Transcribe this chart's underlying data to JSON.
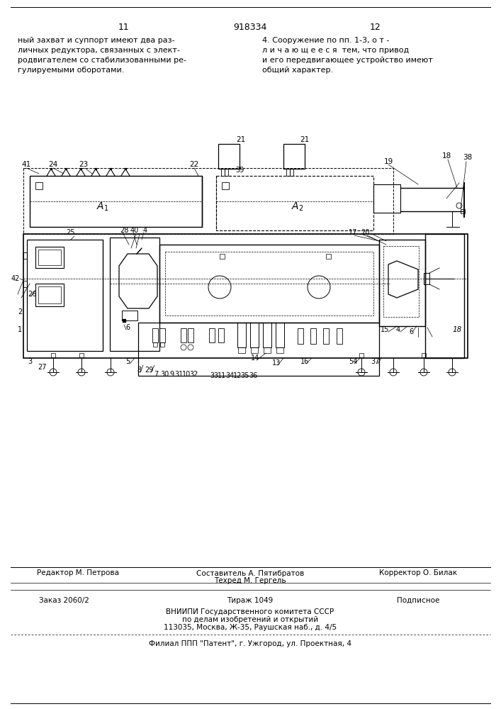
{
  "page_number_left": "11",
  "page_number_center": "918334",
  "page_number_right": "12",
  "text_left": "ный захват и суппорт имеют два раз-\nличных редуктора, связанных с элект-\nродвигателем со стабилизованными ре-\nгулируемыми оборотами.",
  "text_right": "4. Сооружение по пп. 1-3, о т -\nл и ч а ю щ е е с я  тем, что привод\nи его передвигающее устройство имеют\nобщий характер.",
  "footer_editor": "Редактор М. Петрова",
  "footer_composer": "Составитель А. Пятибратов",
  "footer_corrector": "Корректор О. Билак",
  "footer_techred": "Техред М. Гергель",
  "footer_order": "Заказ 2060/2",
  "footer_tirazh": "Тираж 1049",
  "footer_podpisnoe": "Подписное",
  "footer_vniipи": "ВНИИПИ Государственного комитета СССР",
  "footer_po_delam": "по делам изобретений и открытий",
  "footer_address": "113035, Москва, Ж-35, Раушская наб., д. 4/5",
  "footer_filial": "Филиал ППП \"Патент\", г. Ужгород, ул. Проектная, 4",
  "bg_color": "#ffffff",
  "text_color": "#000000"
}
